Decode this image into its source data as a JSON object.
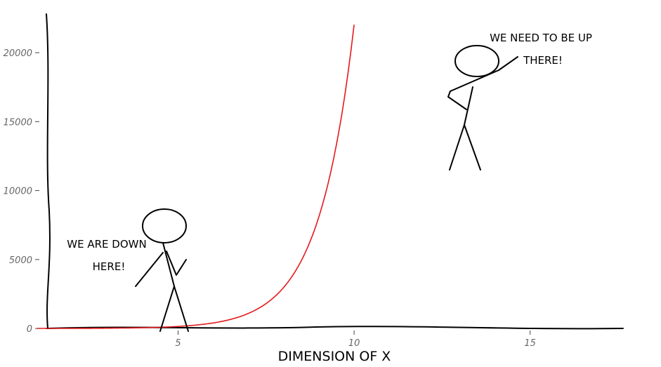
{
  "chart_data": {
    "type": "line",
    "title": "",
    "xlabel": "DIMENSION OF X",
    "ylabel": "",
    "xlim": [
      0.5,
      17.9
    ],
    "ylim": [
      -300,
      22700
    ],
    "x_ticks": [
      5,
      10,
      15
    ],
    "y_ticks": [
      0,
      5000,
      10000,
      15000,
      20000
    ],
    "grid": false,
    "style": "xkcd",
    "series": [
      {
        "color": "#e41a1c",
        "function": "exp(x)",
        "x": [
          1,
          2,
          3,
          4,
          5,
          6,
          6.5,
          7,
          7.5,
          8,
          8.5,
          9,
          9.25,
          9.5,
          9.75,
          10
        ],
        "values": [
          2.7,
          7.4,
          20.1,
          54.6,
          148.4,
          403.4,
          665.1,
          1096.6,
          1808.0,
          2981.0,
          4914.8,
          8103.1,
          10404.6,
          13359.7,
          17154.2,
          22026.5
        ]
      }
    ],
    "annotations": [
      {
        "lines": [
          "WE ARE DOWN",
          "HERE!"
        ]
      },
      {
        "lines": [
          "WE NEED TO BE UP",
          "THERE!"
        ]
      }
    ]
  }
}
